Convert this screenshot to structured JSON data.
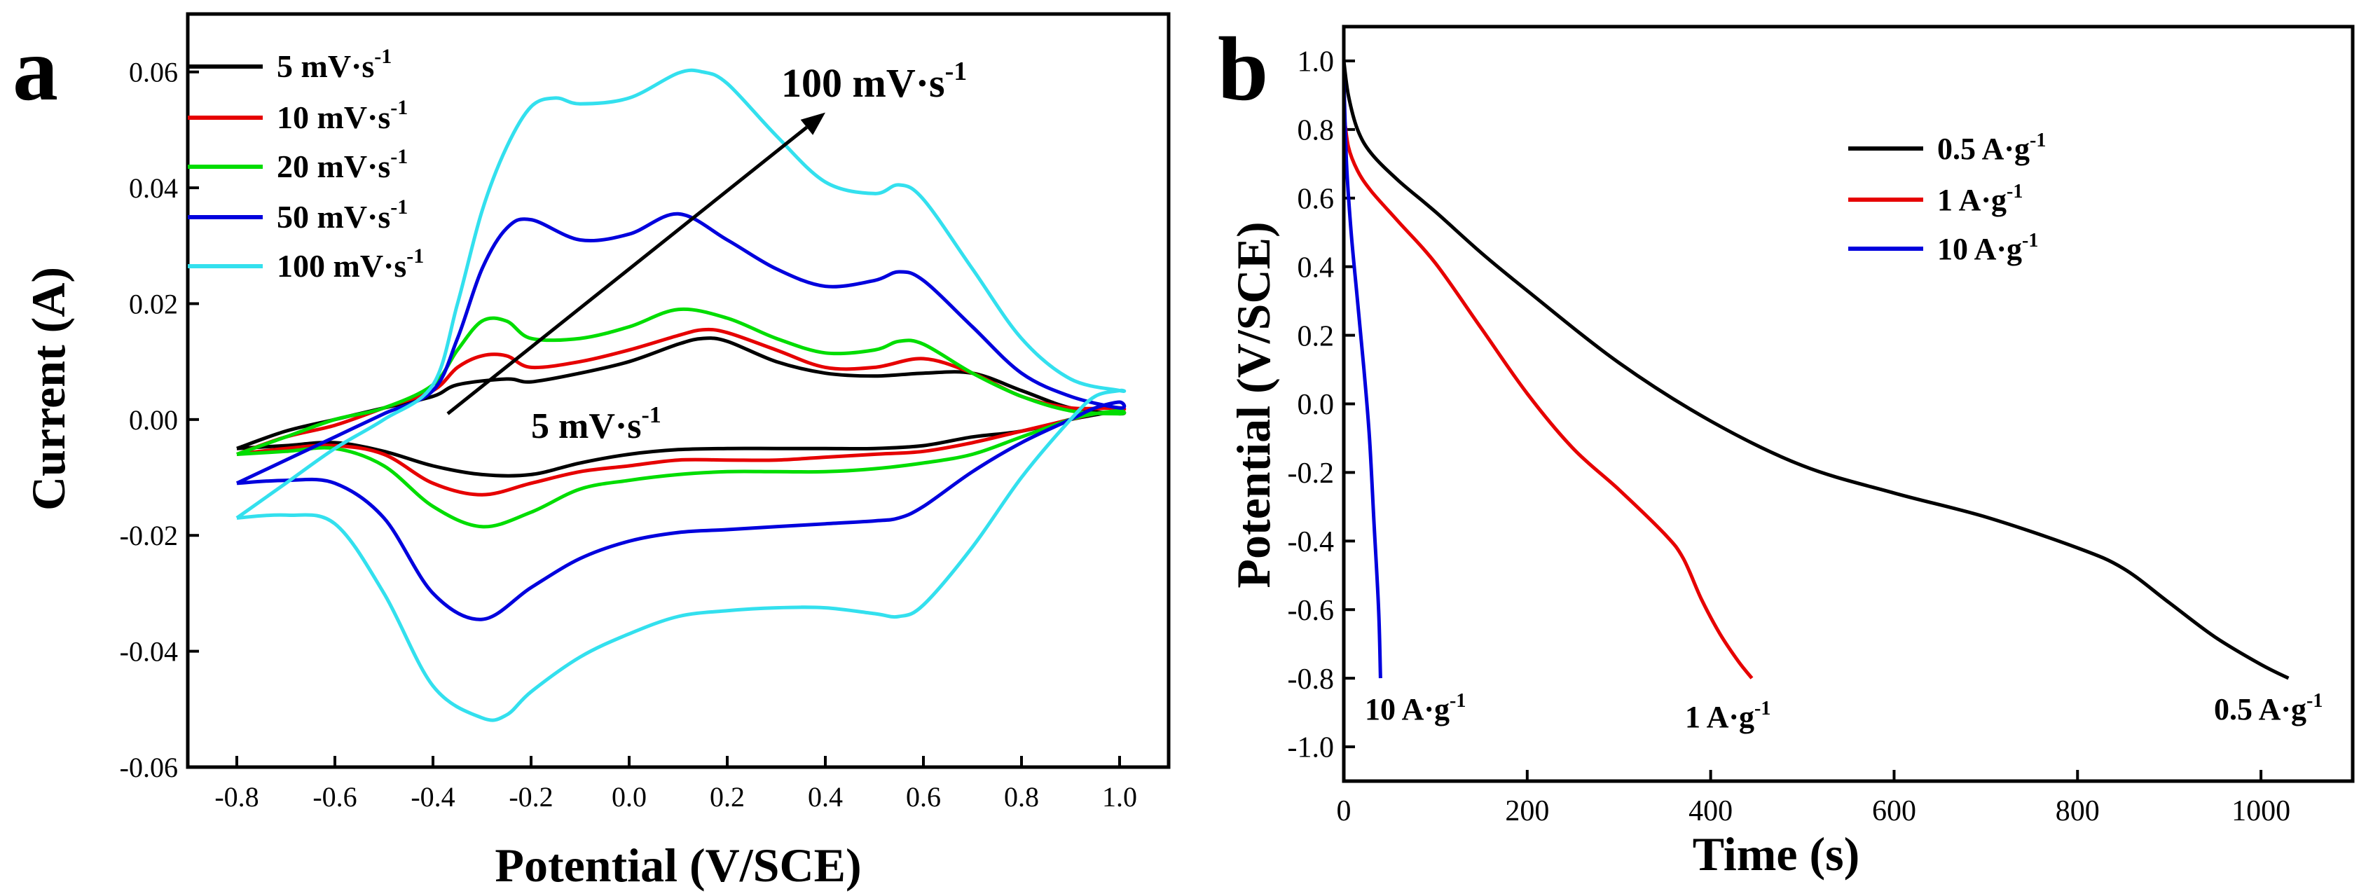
{
  "chart_data": [
    {
      "panel_label": "a",
      "type": "line",
      "xlabel": "Potential (V/SCE)",
      "ylabel": "Current (A)",
      "xlim": [
        -0.9,
        1.1
      ],
      "ylim": [
        -0.06,
        0.07
      ],
      "x_ticks": [
        -0.8,
        -0.6,
        -0.4,
        -0.2,
        0.0,
        0.2,
        0.4,
        0.6,
        0.8,
        1.0
      ],
      "x_tick_labels": [
        "-0.8",
        "-0.6",
        "-0.4",
        "-0.2",
        "0.0",
        "0.2",
        "0.4",
        "0.6",
        "0.8",
        "1.0"
      ],
      "y_ticks": [
        -0.06,
        -0.04,
        -0.02,
        0.0,
        0.02,
        0.04,
        0.06
      ],
      "y_tick_labels": [
        "-0.06",
        "-0.04",
        "-0.02",
        "0.00",
        "0.02",
        "0.04",
        "0.06"
      ],
      "legend": {
        "placement": "top-left",
        "entries": [
          "5 mV·s",
          "10 mV·s",
          "20 mV·s",
          "50 mV·s",
          "100 mV·s"
        ],
        "superscript": "-1"
      },
      "annotations": [
        {
          "text": "100 mV·s",
          "superscript": "-1"
        },
        {
          "text": "5 mV·s",
          "superscript": "-1"
        }
      ],
      "arrow": {
        "from": [
          -0.37,
          0.001
        ],
        "to": [
          0.4,
          0.053
        ]
      },
      "series": [
        {
          "name": "5 mV·s-1",
          "color": "#000000",
          "x": [
            -0.8,
            -0.7,
            -0.6,
            -0.5,
            -0.4,
            -0.35,
            -0.25,
            -0.2,
            -0.1,
            0.0,
            0.1,
            0.15,
            0.2,
            0.3,
            0.4,
            0.5,
            0.6,
            0.7,
            0.8,
            0.9,
            1.0,
            1.0,
            0.95,
            0.9,
            0.8,
            0.7,
            0.6,
            0.5,
            0.4,
            0.3,
            0.2,
            0.1,
            0.0,
            -0.1,
            -0.2,
            -0.3,
            -0.4,
            -0.5,
            -0.6,
            -0.7,
            -0.8
          ],
          "y": [
            -0.005,
            -0.002,
            0.0,
            0.002,
            0.004,
            0.006,
            0.007,
            0.0065,
            0.008,
            0.01,
            0.013,
            0.014,
            0.0135,
            0.01,
            0.008,
            0.0075,
            0.008,
            0.008,
            0.005,
            0.002,
            0.001,
            0.0015,
            0.0008,
            0.0,
            -0.002,
            -0.003,
            -0.0045,
            -0.005,
            -0.005,
            -0.005,
            -0.005,
            -0.0052,
            -0.006,
            -0.0075,
            -0.0095,
            -0.0095,
            -0.008,
            -0.0055,
            -0.004,
            -0.0045,
            -0.005
          ]
        },
        {
          "name": "10 mV·s-1",
          "color": "#e60000",
          "x": [
            -0.8,
            -0.7,
            -0.6,
            -0.5,
            -0.4,
            -0.35,
            -0.3,
            -0.25,
            -0.2,
            -0.1,
            0.0,
            0.1,
            0.15,
            0.2,
            0.3,
            0.4,
            0.5,
            0.6,
            0.7,
            0.8,
            0.9,
            1.0,
            1.0,
            0.95,
            0.9,
            0.8,
            0.7,
            0.6,
            0.5,
            0.4,
            0.3,
            0.2,
            0.1,
            0.0,
            -0.1,
            -0.2,
            -0.3,
            -0.4,
            -0.5,
            -0.6,
            -0.7,
            -0.8
          ],
          "y": [
            -0.006,
            -0.003,
            -0.001,
            0.002,
            0.005,
            0.009,
            0.011,
            0.011,
            0.009,
            0.01,
            0.012,
            0.0145,
            0.0155,
            0.015,
            0.012,
            0.009,
            0.009,
            0.0105,
            0.008,
            0.004,
            0.002,
            0.002,
            0.0015,
            0.001,
            0.0,
            -0.002,
            -0.004,
            -0.0055,
            -0.006,
            -0.0065,
            -0.007,
            -0.007,
            -0.007,
            -0.008,
            -0.009,
            -0.011,
            -0.013,
            -0.011,
            -0.006,
            -0.0045,
            -0.005,
            -0.006
          ]
        },
        {
          "name": "20 mV·s-1",
          "color": "#00dd00",
          "x": [
            -0.8,
            -0.7,
            -0.6,
            -0.5,
            -0.4,
            -0.35,
            -0.3,
            -0.25,
            -0.2,
            -0.1,
            0.0,
            0.1,
            0.2,
            0.3,
            0.4,
            0.5,
            0.55,
            0.6,
            0.7,
            0.8,
            0.9,
            1.0,
            1.0,
            0.95,
            0.9,
            0.8,
            0.7,
            0.6,
            0.5,
            0.4,
            0.3,
            0.2,
            0.1,
            0.0,
            -0.1,
            -0.2,
            -0.3,
            -0.4,
            -0.5,
            -0.6,
            -0.7,
            -0.8
          ],
          "y": [
            -0.006,
            -0.003,
            0.0,
            0.002,
            0.006,
            0.012,
            0.017,
            0.017,
            0.014,
            0.014,
            0.016,
            0.019,
            0.0175,
            0.014,
            0.0115,
            0.012,
            0.0135,
            0.013,
            0.008,
            0.004,
            0.0015,
            0.001,
            0.0015,
            0.001,
            0.0,
            -0.003,
            -0.006,
            -0.0075,
            -0.0085,
            -0.009,
            -0.009,
            -0.009,
            -0.0095,
            -0.0105,
            -0.012,
            -0.016,
            -0.0185,
            -0.015,
            -0.008,
            -0.005,
            -0.0055,
            -0.006
          ]
        },
        {
          "name": "50 mV·s-1",
          "color": "#0000dd",
          "x": [
            -0.8,
            -0.7,
            -0.6,
            -0.5,
            -0.4,
            -0.35,
            -0.3,
            -0.25,
            -0.2,
            -0.1,
            0.0,
            0.1,
            0.2,
            0.3,
            0.4,
            0.5,
            0.55,
            0.6,
            0.7,
            0.8,
            0.9,
            1.0,
            1.0,
            0.95,
            0.9,
            0.8,
            0.7,
            0.6,
            0.55,
            0.5,
            0.4,
            0.3,
            0.2,
            0.1,
            0.0,
            -0.1,
            -0.2,
            -0.3,
            -0.4,
            -0.5,
            -0.6,
            -0.7,
            -0.8
          ],
          "y": [
            -0.011,
            -0.007,
            -0.003,
            0.001,
            0.005,
            0.014,
            0.026,
            0.033,
            0.0345,
            0.031,
            0.032,
            0.0355,
            0.031,
            0.026,
            0.023,
            0.024,
            0.0255,
            0.024,
            0.016,
            0.008,
            0.004,
            0.002,
            0.003,
            0.002,
            0.0,
            -0.004,
            -0.009,
            -0.015,
            -0.017,
            -0.0175,
            -0.018,
            -0.0185,
            -0.019,
            -0.0195,
            -0.021,
            -0.024,
            -0.029,
            -0.0345,
            -0.03,
            -0.017,
            -0.011,
            -0.0105,
            -0.011
          ]
        },
        {
          "name": "100 mV·s-1",
          "color": "#33e0ee",
          "x": [
            -0.8,
            -0.7,
            -0.6,
            -0.5,
            -0.4,
            -0.35,
            -0.3,
            -0.25,
            -0.2,
            -0.15,
            -0.1,
            0.0,
            0.1,
            0.15,
            0.2,
            0.3,
            0.4,
            0.5,
            0.55,
            0.6,
            0.7,
            0.8,
            0.9,
            1.0,
            1.0,
            0.95,
            0.9,
            0.8,
            0.7,
            0.6,
            0.55,
            0.5,
            0.4,
            0.3,
            0.2,
            0.1,
            0.0,
            -0.1,
            -0.2,
            -0.25,
            -0.3,
            -0.4,
            -0.5,
            -0.6,
            -0.7,
            -0.8
          ],
          "y": [
            -0.017,
            -0.011,
            -0.005,
            0.0,
            0.006,
            0.02,
            0.036,
            0.047,
            0.054,
            0.0555,
            0.0545,
            0.0555,
            0.0598,
            0.06,
            0.058,
            0.049,
            0.041,
            0.039,
            0.0405,
            0.038,
            0.026,
            0.014,
            0.007,
            0.005,
            0.005,
            0.004,
            0.0,
            -0.01,
            -0.022,
            -0.032,
            -0.034,
            -0.0335,
            -0.0325,
            -0.0325,
            -0.033,
            -0.034,
            -0.037,
            -0.041,
            -0.047,
            -0.051,
            -0.0515,
            -0.046,
            -0.03,
            -0.018,
            -0.0165,
            -0.017
          ]
        }
      ]
    },
    {
      "panel_label": "b",
      "type": "line",
      "xlabel": "Time (s)",
      "ylabel": "Potential (V/SCE)",
      "xlim": [
        0,
        1100
      ],
      "ylim": [
        -1.1,
        1.1
      ],
      "x_ticks": [
        0,
        200,
        400,
        600,
        800,
        1000
      ],
      "x_tick_labels": [
        "0",
        "200",
        "400",
        "600",
        "800",
        "1000"
      ],
      "y_ticks": [
        -1.0,
        -0.8,
        -0.6,
        -0.4,
        -0.2,
        0.0,
        0.2,
        0.4,
        0.6,
        0.8,
        1.0
      ],
      "y_tick_labels": [
        "-1.0",
        "-0.8",
        "-0.6",
        "-0.4",
        "-0.2",
        "0.0",
        "0.2",
        "0.4",
        "0.6",
        "0.8",
        "1.0"
      ],
      "legend": {
        "placement": "top-right",
        "entries": [
          "0.5 A·g",
          "1 A·g",
          "10 A·g"
        ],
        "superscript": "-1"
      },
      "annotations": [
        {
          "text": "10 A·g",
          "superscript": "-1"
        },
        {
          "text": "1 A·g",
          "superscript": "-1"
        },
        {
          "text": "0.5 A·g",
          "superscript": "-1"
        }
      ],
      "series": [
        {
          "name": "0.5 A·g-1",
          "color": "#000000",
          "x": [
            0,
            5,
            15,
            30,
            60,
            100,
            150,
            200,
            300,
            400,
            500,
            600,
            700,
            800,
            850,
            900,
            950,
            1000,
            1030
          ],
          "y": [
            1.0,
            0.9,
            0.8,
            0.73,
            0.65,
            0.56,
            0.44,
            0.33,
            0.12,
            -0.05,
            -0.18,
            -0.26,
            -0.33,
            -0.42,
            -0.48,
            -0.58,
            -0.68,
            -0.76,
            -0.8
          ]
        },
        {
          "name": "1 A·g-1",
          "color": "#e60000",
          "x": [
            0,
            5,
            15,
            30,
            60,
            100,
            150,
            200,
            250,
            300,
            350,
            370,
            390,
            410,
            430,
            445
          ],
          "y": [
            0.85,
            0.75,
            0.68,
            0.62,
            0.53,
            0.41,
            0.22,
            0.03,
            -0.13,
            -0.25,
            -0.38,
            -0.45,
            -0.57,
            -0.67,
            -0.75,
            -0.8
          ]
        },
        {
          "name": "10 A·g-1",
          "color": "#0000dd",
          "x": [
            0,
            3,
            8,
            15,
            22,
            28,
            33,
            38,
            40
          ],
          "y": [
            0.95,
            0.7,
            0.5,
            0.3,
            0.1,
            -0.1,
            -0.35,
            -0.6,
            -0.8
          ]
        }
      ]
    }
  ]
}
